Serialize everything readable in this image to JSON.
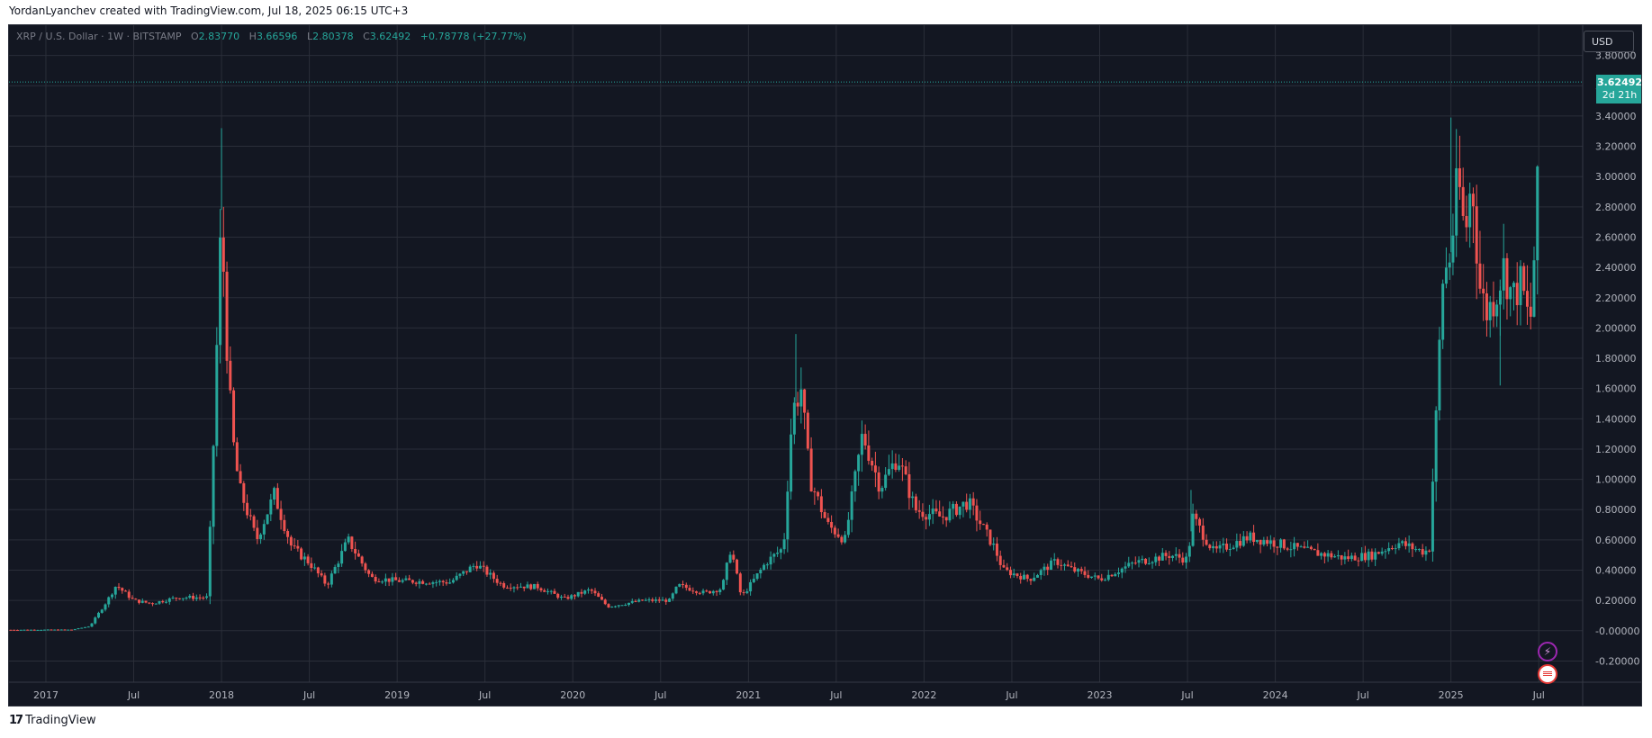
{
  "header": {
    "text": "YordanLyanchev created with TradingView.com, Jul 18, 2025 06:15 UTC+3"
  },
  "legend": {
    "symbol": "XRP / U.S. Dollar · 1W · BITSTAMP",
    "o_label": "O",
    "o": "2.83770",
    "h_label": "H",
    "h": "3.66596",
    "l_label": "L",
    "l": "2.80378",
    "c_label": "C",
    "c": "3.62492",
    "change": "+0.78778 (+27.77%)"
  },
  "currency": "USD",
  "price_tag": {
    "price": "3.62492",
    "countdown": "2d 21h"
  },
  "footer": {
    "brand": "TradingView"
  },
  "icons": [
    "lightning-icon",
    "us-flag-icon"
  ],
  "colors": {
    "background": "#131722",
    "up": "#26a69a",
    "down": "#ef5350",
    "grid": "#2a2e39",
    "text": "#b2b5be"
  },
  "chart_data": {
    "type": "candlestick",
    "title": "XRP / U.S. Dollar · 1W · BITSTAMP",
    "xlabel": "",
    "ylabel": "",
    "ylim": [
      -0.34,
      4.0
    ],
    "yticks": [
      "3.80000",
      "3.60000",
      "3.40000",
      "3.20000",
      "3.00000",
      "2.80000",
      "2.60000",
      "2.40000",
      "2.20000",
      "2.00000",
      "1.80000",
      "1.60000",
      "1.40000",
      "1.20000",
      "1.00000",
      "0.80000",
      "0.60000",
      "0.40000",
      "0.20000",
      "-0.00000",
      "-0.20000"
    ],
    "ytick_values": [
      3.8,
      3.6,
      3.4,
      3.2,
      3.0,
      2.8,
      2.6,
      2.4,
      2.2,
      2.0,
      1.8,
      1.6,
      1.4,
      1.2,
      1.0,
      0.8,
      0.6,
      0.4,
      0.2,
      0.0,
      -0.2
    ],
    "xticks": [
      {
        "label": "2017",
        "t": 2017.0
      },
      {
        "label": "Jul",
        "t": 2017.5
      },
      {
        "label": "2018",
        "t": 2018.0
      },
      {
        "label": "Jul",
        "t": 2018.5
      },
      {
        "label": "2019",
        "t": 2019.0
      },
      {
        "label": "Jul",
        "t": 2019.5
      },
      {
        "label": "2020",
        "t": 2020.0
      },
      {
        "label": "Jul",
        "t": 2020.5
      },
      {
        "label": "2021",
        "t": 2021.0
      },
      {
        "label": "Jul",
        "t": 2021.5
      },
      {
        "label": "2022",
        "t": 2022.0
      },
      {
        "label": "Jul",
        "t": 2022.5
      },
      {
        "label": "2023",
        "t": 2023.0
      },
      {
        "label": "Jul",
        "t": 2023.5
      },
      {
        "label": "2024",
        "t": 2024.0
      },
      {
        "label": "Jul",
        "t": 2024.5
      },
      {
        "label": "2025",
        "t": 2025.0
      },
      {
        "label": "Jul",
        "t": 2025.5
      }
    ],
    "last_price": 3.62492,
    "price_keypoints": [
      [
        2016.8,
        0.006
      ],
      [
        2017.15,
        0.007
      ],
      [
        2017.25,
        0.03
      ],
      [
        2017.35,
        0.2
      ],
      [
        2017.4,
        0.3
      ],
      [
        2017.5,
        0.2
      ],
      [
        2017.6,
        0.18
      ],
      [
        2017.75,
        0.22
      ],
      [
        2017.92,
        0.22
      ],
      [
        2017.95,
        1.1
      ],
      [
        2018.0,
        2.78
      ],
      [
        2018.02,
        2.1
      ],
      [
        2018.06,
        1.3
      ],
      [
        2018.1,
        0.95
      ],
      [
        2018.2,
        0.6
      ],
      [
        2018.3,
        0.9
      ],
      [
        2018.4,
        0.55
      ],
      [
        2018.5,
        0.45
      ],
      [
        2018.6,
        0.3
      ],
      [
        2018.72,
        0.6
      ],
      [
        2018.85,
        0.35
      ],
      [
        2019.0,
        0.33
      ],
      [
        2019.3,
        0.32
      ],
      [
        2019.45,
        0.44
      ],
      [
        2019.6,
        0.3
      ],
      [
        2019.8,
        0.29
      ],
      [
        2019.95,
        0.21
      ],
      [
        2020.1,
        0.27
      ],
      [
        2020.2,
        0.16
      ],
      [
        2020.4,
        0.2
      ],
      [
        2020.55,
        0.2
      ],
      [
        2020.6,
        0.3
      ],
      [
        2020.75,
        0.25
      ],
      [
        2020.85,
        0.28
      ],
      [
        2020.9,
        0.55
      ],
      [
        2020.96,
        0.22
      ],
      [
        2021.1,
        0.45
      ],
      [
        2021.2,
        0.55
      ],
      [
        2021.25,
        1.45
      ],
      [
        2021.3,
        1.6
      ],
      [
        2021.35,
        1.0
      ],
      [
        2021.45,
        0.7
      ],
      [
        2021.55,
        0.6
      ],
      [
        2021.65,
        1.3
      ],
      [
        2021.75,
        0.95
      ],
      [
        2021.85,
        1.15
      ],
      [
        2021.95,
        0.8
      ],
      [
        2022.1,
        0.75
      ],
      [
        2022.25,
        0.85
      ],
      [
        2022.4,
        0.55
      ],
      [
        2022.45,
        0.4
      ],
      [
        2022.6,
        0.34
      ],
      [
        2022.75,
        0.46
      ],
      [
        2022.85,
        0.4
      ],
      [
        2023.0,
        0.34
      ],
      [
        2023.2,
        0.45
      ],
      [
        2023.4,
        0.5
      ],
      [
        2023.5,
        0.47
      ],
      [
        2023.53,
        0.75
      ],
      [
        2023.65,
        0.52
      ],
      [
        2023.85,
        0.62
      ],
      [
        2024.0,
        0.58
      ],
      [
        2024.2,
        0.52
      ],
      [
        2024.4,
        0.48
      ],
      [
        2024.55,
        0.5
      ],
      [
        2024.7,
        0.58
      ],
      [
        2024.85,
        0.52
      ],
      [
        2024.88,
        0.55
      ],
      [
        2024.9,
        1.1
      ],
      [
        2024.92,
        1.5
      ],
      [
        2024.95,
        2.3
      ],
      [
        2025.0,
        2.5
      ],
      [
        2025.04,
        3.0
      ],
      [
        2025.08,
        2.6
      ],
      [
        2025.12,
        3.0
      ],
      [
        2025.16,
        2.3
      ],
      [
        2025.2,
        2.1
      ],
      [
        2025.25,
        2.2
      ],
      [
        2025.3,
        2.4
      ],
      [
        2025.35,
        2.2
      ],
      [
        2025.4,
        2.3
      ],
      [
        2025.45,
        2.0
      ],
      [
        2025.49,
        2.8
      ],
      [
        2025.51,
        3.62
      ]
    ],
    "wick_spikes": [
      [
        2018.0,
        3.32
      ],
      [
        2021.27,
        1.96
      ],
      [
        2025.0,
        3.39
      ],
      [
        2023.52,
        0.93
      ],
      [
        2025.28,
        1.62
      ]
    ]
  }
}
